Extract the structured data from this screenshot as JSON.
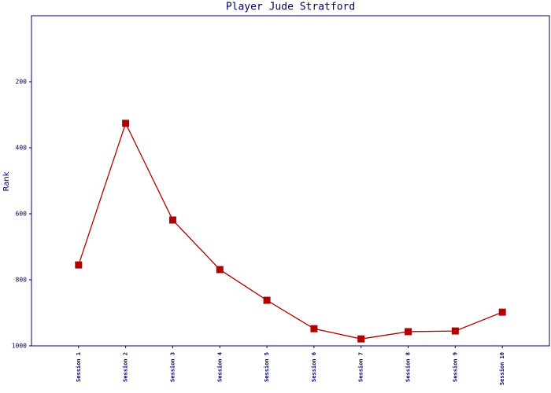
{
  "chart_data": {
    "type": "line",
    "title": "Player Jude Stratford",
    "y_label": "Rank",
    "categories": [
      "Session 1",
      "Session 2",
      "Session 3",
      "Session 4",
      "Session 5",
      "Session 6",
      "Session 7",
      "Session 8",
      "Session 9",
      "Session 10"
    ],
    "values": [
      755,
      326,
      619,
      769,
      862,
      948,
      979,
      957,
      955,
      898
    ],
    "color": "#b00000",
    "ylim": [
      0,
      1000
    ],
    "y_inverted": true,
    "yticks": [
      200,
      400,
      600,
      800,
      1000
    ]
  }
}
